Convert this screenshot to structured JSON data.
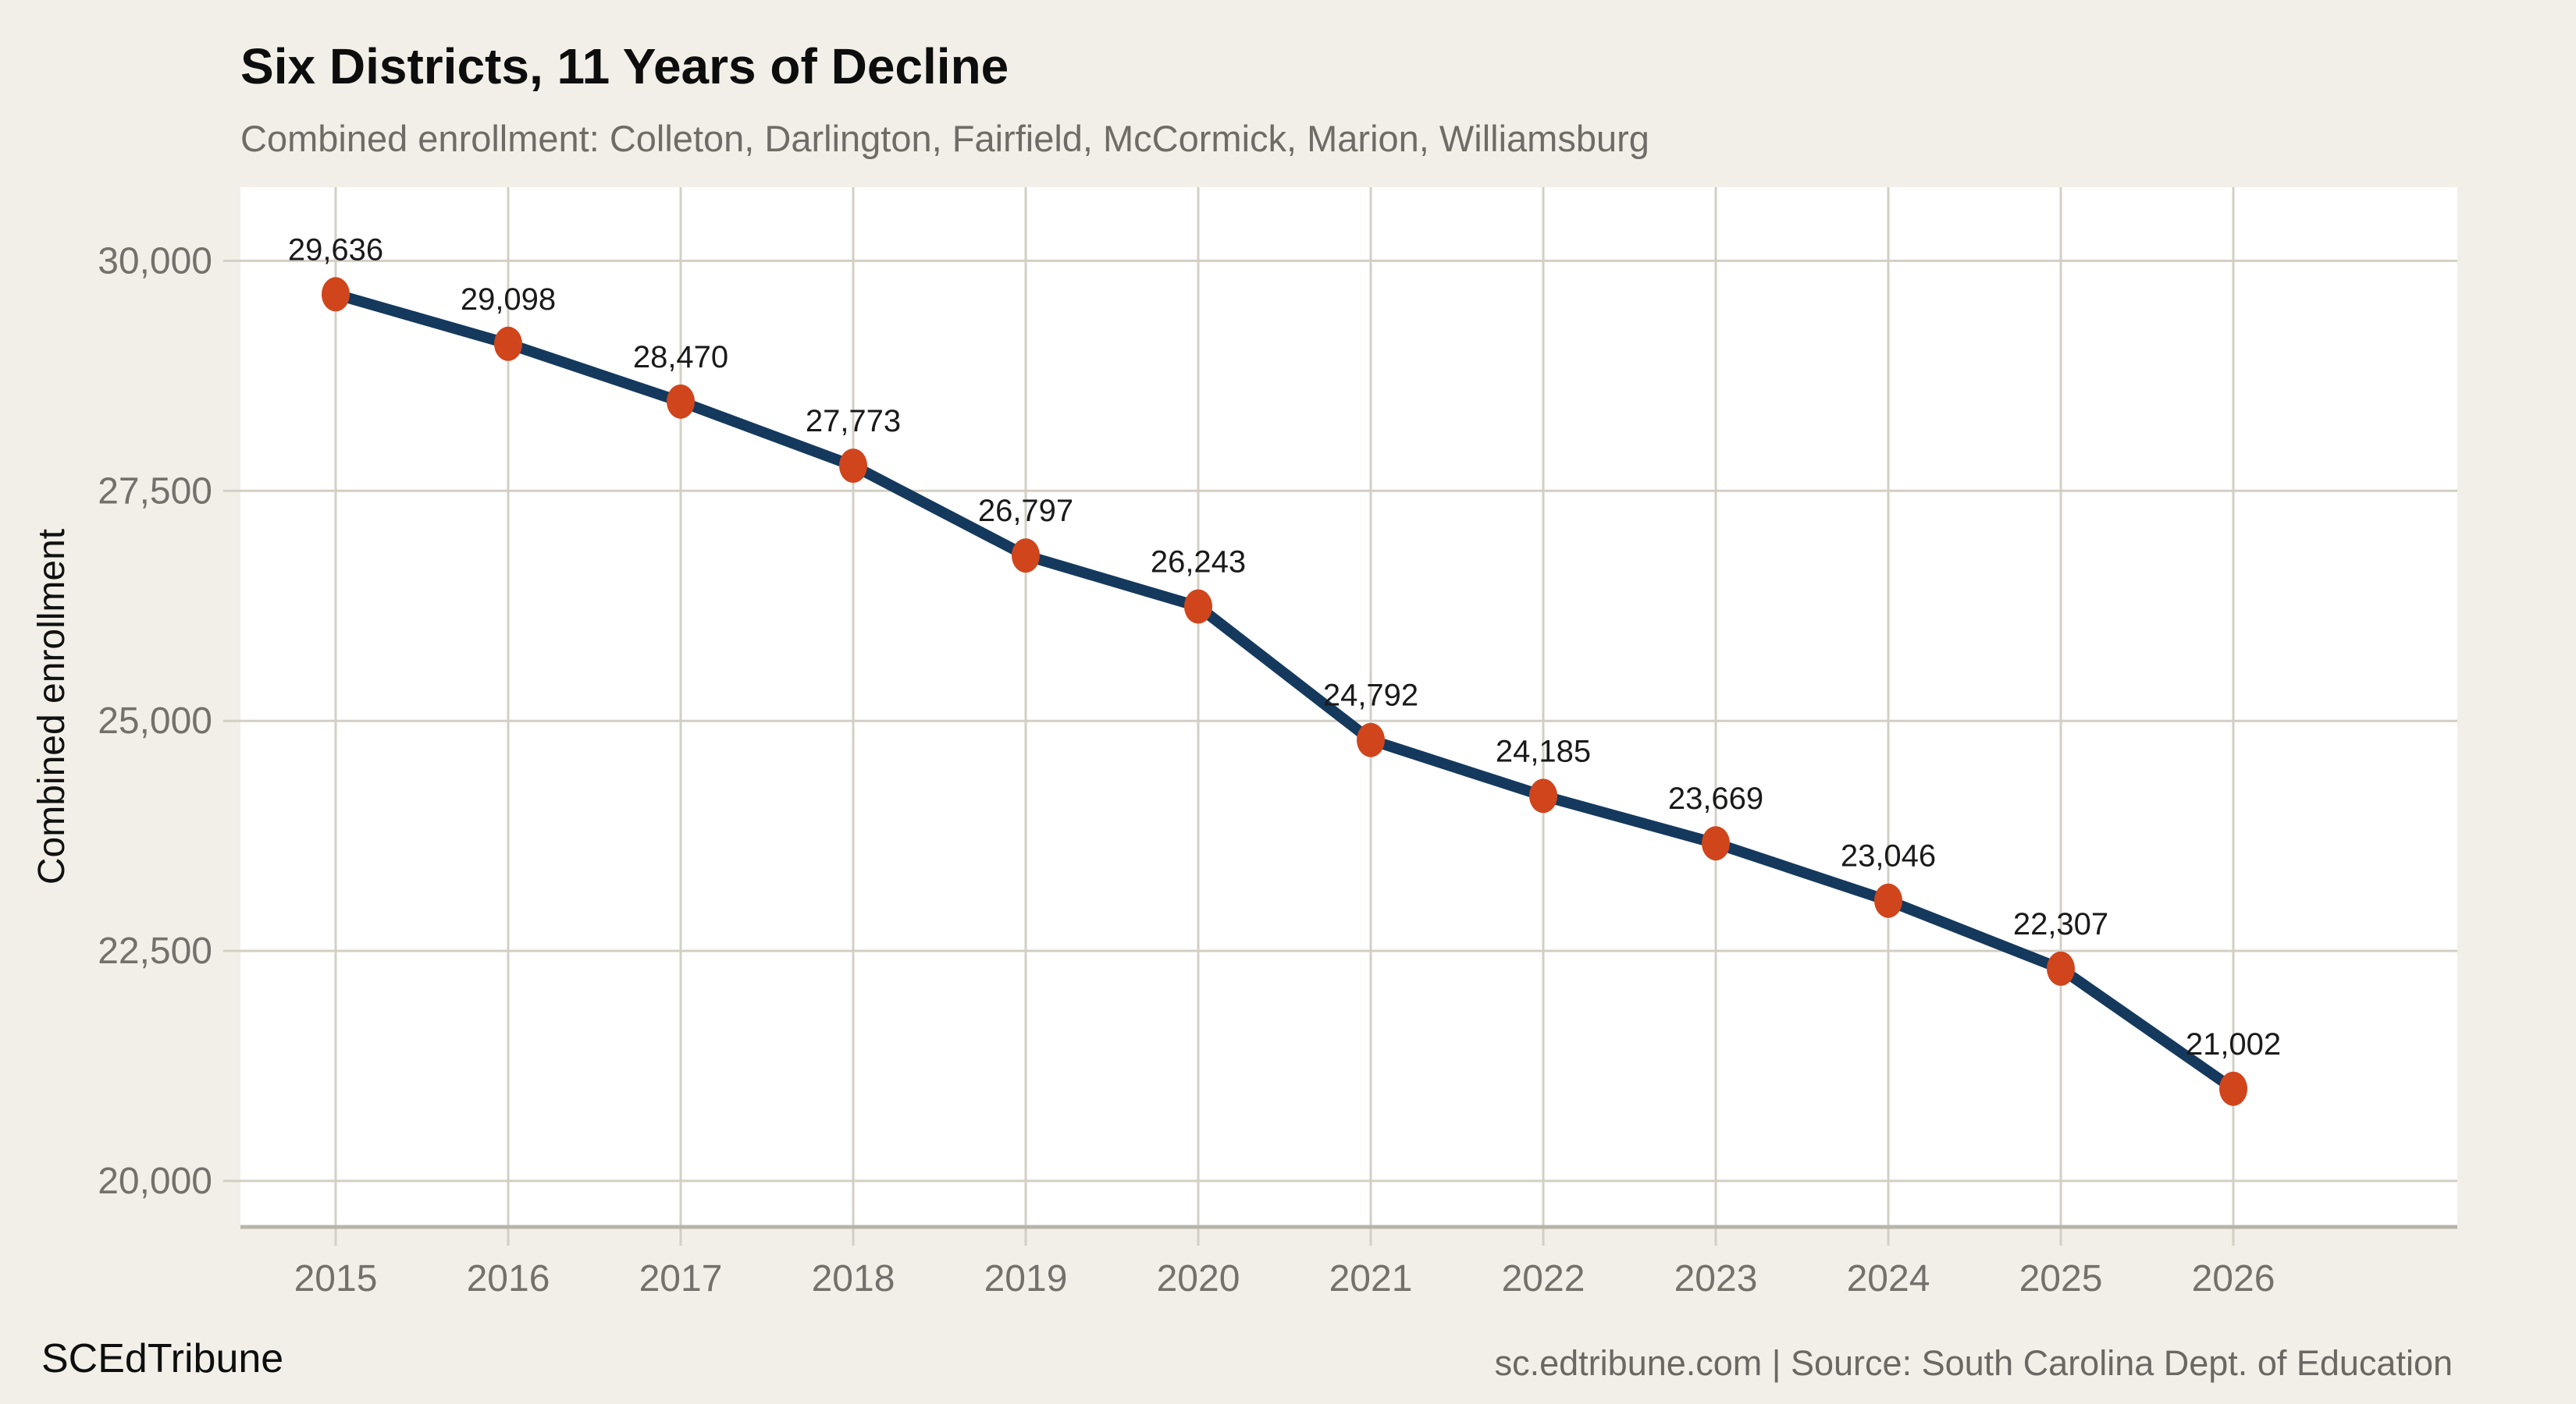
{
  "header": {
    "title": "Six Districts, 11 Years of Decline",
    "subtitle": "Combined enrollment: Colleton, Darlington, Fairfield, McCormick, Marion, Williamsburg"
  },
  "footer": {
    "brand": "SCEdTribune",
    "attribution": "sc.edtribune.com | Source: South Carolina Dept. of Education"
  },
  "colors": {
    "background": "#f2efe8",
    "plot_background": "#ffffff",
    "gridline": "#d3cfc5",
    "axis_line": "#b8b4aa",
    "line": "#14395d",
    "point": "#d0451c",
    "title_text": "#0d0d0d",
    "muted_text": "#74706b",
    "value_label_text": "#1a1a1a"
  },
  "chart_data": {
    "type": "line",
    "title": "Six Districts, 11 Years of Decline",
    "subtitle": "Combined enrollment: Colleton, Darlington, Fairfield, McCormick, Marion, Williamsburg",
    "xlabel": "",
    "ylabel": "Combined enrollment",
    "x": [
      2015,
      2016,
      2017,
      2018,
      2019,
      2020,
      2021,
      2022,
      2023,
      2024,
      2025,
      2026
    ],
    "series": [
      {
        "name": "Combined enrollment",
        "values": [
          29636,
          29098,
          28470,
          27773,
          26797,
          26243,
          24792,
          24185,
          23669,
          23046,
          22307,
          21002
        ],
        "values_formatted": [
          "29,636",
          "29,098",
          "28,470",
          "27,773",
          "26,797",
          "26,243",
          "24,792",
          "24,185",
          "23,669",
          "23,046",
          "22,307",
          "21,002"
        ]
      }
    ],
    "ylim": [
      19500,
      30800
    ],
    "yticks": [
      20000,
      22500,
      25000,
      27500,
      30000
    ],
    "ytick_labels": [
      "20,000",
      "22,500",
      "25,000",
      "27,500",
      "30,000"
    ],
    "grid": true,
    "legend_position": "none"
  }
}
